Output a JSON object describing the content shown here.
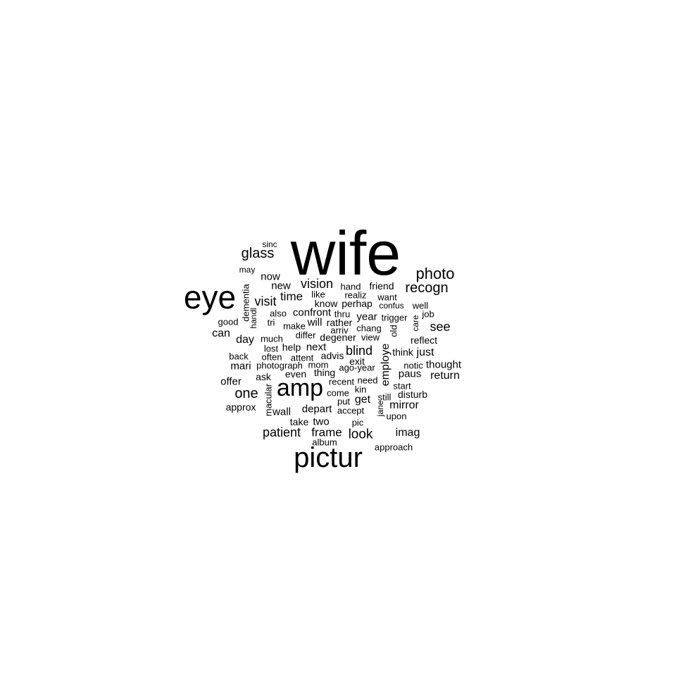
{
  "colors": {
    "background": "#ffffff",
    "text": "#000000"
  },
  "words": [
    {
      "id": "wife",
      "text": "wife"
    },
    {
      "id": "eye",
      "text": "eye"
    },
    {
      "id": "pictur",
      "text": "pictur"
    },
    {
      "id": "amp",
      "text": "amp"
    },
    {
      "id": "photo",
      "text": "photo"
    },
    {
      "id": "recogn",
      "text": "recogn"
    },
    {
      "id": "glass",
      "text": "glass"
    },
    {
      "id": "sinc",
      "text": "sinc"
    },
    {
      "id": "may",
      "text": "may"
    },
    {
      "id": "now",
      "text": "now"
    },
    {
      "id": "new",
      "text": "new"
    },
    {
      "id": "vision",
      "text": "vision"
    },
    {
      "id": "hand",
      "text": "hand"
    },
    {
      "id": "friend",
      "text": "friend"
    },
    {
      "id": "like",
      "text": "like"
    },
    {
      "id": "realiz",
      "text": "realiz"
    },
    {
      "id": "want",
      "text": "want"
    },
    {
      "id": "visit",
      "text": "visit"
    },
    {
      "id": "time",
      "text": "time"
    },
    {
      "id": "know",
      "text": "know"
    },
    {
      "id": "perhap",
      "text": "perhap"
    },
    {
      "id": "confus",
      "text": "confus"
    },
    {
      "id": "well",
      "text": "well"
    },
    {
      "id": "dementia",
      "text": "dementia"
    },
    {
      "id": "handl",
      "text": "handl"
    },
    {
      "id": "also",
      "text": "also"
    },
    {
      "id": "confront",
      "text": "confront"
    },
    {
      "id": "thru",
      "text": "thru"
    },
    {
      "id": "year",
      "text": "year"
    },
    {
      "id": "trigger",
      "text": "trigger"
    },
    {
      "id": "job",
      "text": "job"
    },
    {
      "id": "good",
      "text": "good"
    },
    {
      "id": "tri",
      "text": "tri"
    },
    {
      "id": "make",
      "text": "make"
    },
    {
      "id": "will",
      "text": "will"
    },
    {
      "id": "rather",
      "text": "rather"
    },
    {
      "id": "care",
      "text": "care"
    },
    {
      "id": "see",
      "text": "see"
    },
    {
      "id": "can",
      "text": "can"
    },
    {
      "id": "arriv",
      "text": "arriv"
    },
    {
      "id": "chang",
      "text": "chang"
    },
    {
      "id": "old",
      "text": "old"
    },
    {
      "id": "differ",
      "text": "differ"
    },
    {
      "id": "degener",
      "text": "degener"
    },
    {
      "id": "view",
      "text": "view"
    },
    {
      "id": "reflect",
      "text": "reflect"
    },
    {
      "id": "day",
      "text": "day"
    },
    {
      "id": "much",
      "text": "much"
    },
    {
      "id": "lost",
      "text": "lost"
    },
    {
      "id": "help",
      "text": "help"
    },
    {
      "id": "next",
      "text": "next"
    },
    {
      "id": "blind",
      "text": "blind"
    },
    {
      "id": "employe",
      "text": "employe"
    },
    {
      "id": "think",
      "text": "think"
    },
    {
      "id": "just",
      "text": "just"
    },
    {
      "id": "back",
      "text": "back"
    },
    {
      "id": "often",
      "text": "often"
    },
    {
      "id": "attent",
      "text": "attent"
    },
    {
      "id": "advis",
      "text": "advis"
    },
    {
      "id": "exit",
      "text": "exit"
    },
    {
      "id": "mari",
      "text": "mari"
    },
    {
      "id": "photograph",
      "text": "photograph"
    },
    {
      "id": "mom",
      "text": "mom"
    },
    {
      "id": "ago-year",
      "text": "ago-year"
    },
    {
      "id": "notic",
      "text": "notic"
    },
    {
      "id": "thought",
      "text": "thought"
    },
    {
      "id": "ask",
      "text": "ask"
    },
    {
      "id": "even",
      "text": "even"
    },
    {
      "id": "thing",
      "text": "thing"
    },
    {
      "id": "paus",
      "text": "paus"
    },
    {
      "id": "return",
      "text": "return"
    },
    {
      "id": "offer",
      "text": "offer"
    },
    {
      "id": "recent",
      "text": "recent"
    },
    {
      "id": "need",
      "text": "need"
    },
    {
      "id": "start",
      "text": "start"
    },
    {
      "id": "one",
      "text": "one"
    },
    {
      "id": "macular",
      "text": "macular"
    },
    {
      "id": "come",
      "text": "come"
    },
    {
      "id": "kin",
      "text": "kin"
    },
    {
      "id": "disturb",
      "text": "disturb"
    },
    {
      "id": "put",
      "text": "put"
    },
    {
      "id": "get",
      "text": "get"
    },
    {
      "id": "still",
      "text": "still"
    },
    {
      "id": "approx",
      "text": "approx"
    },
    {
      "id": "wall",
      "text": "wall"
    },
    {
      "id": "depart",
      "text": "depart"
    },
    {
      "id": "accept",
      "text": "accept"
    },
    {
      "id": "jane",
      "text": "jane"
    },
    {
      "id": "mirror",
      "text": "mirror"
    },
    {
      "id": "upon",
      "text": "upon"
    },
    {
      "id": "take",
      "text": "take"
    },
    {
      "id": "two",
      "text": "two"
    },
    {
      "id": "pic",
      "text": "pic"
    },
    {
      "id": "patient",
      "text": "patient"
    },
    {
      "id": "frame",
      "text": "frame"
    },
    {
      "id": "look",
      "text": "look"
    },
    {
      "id": "imag",
      "text": "imag"
    },
    {
      "id": "album",
      "text": "album"
    },
    {
      "id": "approach",
      "text": "approach"
    }
  ]
}
